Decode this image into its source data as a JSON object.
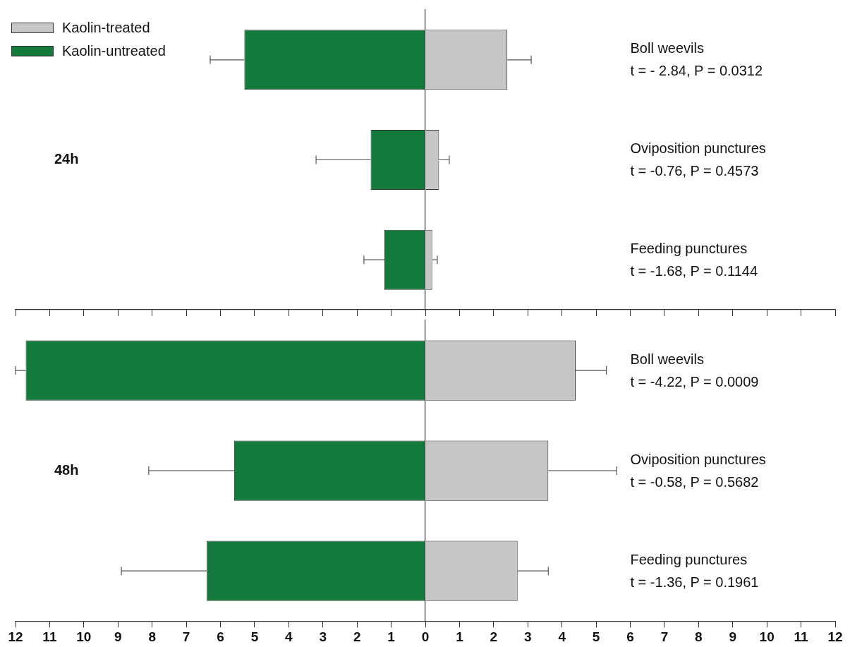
{
  "chart_data": [
    {
      "type": "bar",
      "orientation": "horizontal",
      "stacked": true,
      "categories": [
        "Boll weevils",
        "Oviposition punctures",
        "Feeding punctures"
      ],
      "series": [
        {
          "name": "Kaolin-treated",
          "color": "#c6c6c6",
          "values": [
            2.4,
            0.4,
            0.2
          ],
          "errors": [
            0.7,
            0.3,
            0.15
          ]
        },
        {
          "name": "Kaolin-untreated",
          "color": "#137a3c",
          "values": [
            -5.3,
            -1.6,
            -1.2
          ],
          "errors": [
            1.0,
            1.6,
            0.6
          ]
        }
      ],
      "xlim": [
        -12,
        12
      ],
      "xticks": [
        {
          "value": -12,
          "label": null
        },
        {
          "value": -11,
          "label": null
        },
        {
          "value": -10,
          "label": null
        },
        {
          "value": -9,
          "label": null
        },
        {
          "value": -8,
          "label": null
        },
        {
          "value": -7,
          "label": null
        },
        {
          "value": -6,
          "label": null
        },
        {
          "value": -5,
          "label": null
        },
        {
          "value": -4,
          "label": null
        },
        {
          "value": -3,
          "label": null
        },
        {
          "value": -2,
          "label": null
        },
        {
          "value": -1,
          "label": null
        },
        {
          "value": 0,
          "label": null
        },
        {
          "value": 1,
          "label": null
        },
        {
          "value": 2,
          "label": null
        },
        {
          "value": 3,
          "label": null
        },
        {
          "value": 4,
          "label": null
        },
        {
          "value": 5,
          "label": null
        },
        {
          "value": 6,
          "label": null
        },
        {
          "value": 7,
          "label": null
        },
        {
          "value": 8,
          "label": null
        },
        {
          "value": 9,
          "label": null
        },
        {
          "value": 10,
          "label": null
        },
        {
          "value": 11,
          "label": null
        },
        {
          "value": 12,
          "label": null
        }
      ],
      "tick_labels": "y",
      "legend": "top left",
      "annotations": [
        "24h",
        "t = - 2.84, P = 0.0312",
        "t = -0.76, P = 0.4573",
        "t = -1.68, P = 0.1144"
      ]
    },
    {
      "type": "bar",
      "orientation": "horizontal",
      "stacked": true,
      "categories": [
        "Boll weevils",
        "Oviposition punctures",
        "Feeding punctures"
      ],
      "series": [
        {
          "color": "#c6c6c6",
          "values": [
            4.4,
            3.6,
            2.7
          ],
          "errors": [
            0.9,
            2.0,
            0.9
          ]
        },
        {
          "color": "#137a3c",
          "values": [
            -11.7,
            -5.6,
            -6.4
          ],
          "errors": [
            0.3,
            2.5,
            2.5
          ]
        }
      ],
      "xlim": [
        -12,
        12
      ],
      "xticks": [
        {
          "value": -12,
          "label": "12"
        },
        {
          "value": -11,
          "label": "11"
        },
        {
          "value": -10,
          "label": "10"
        },
        {
          "value": -9,
          "label": "9"
        },
        {
          "value": -8,
          "label": "8"
        },
        {
          "value": -7,
          "label": "7"
        },
        {
          "value": -6,
          "label": "6"
        },
        {
          "value": -5,
          "label": "5"
        },
        {
          "value": -4,
          "label": "4"
        },
        {
          "value": -3,
          "label": "3"
        },
        {
          "value": -2,
          "label": "2"
        },
        {
          "value": -1,
          "label": "1"
        },
        0,
        1,
        2,
        3,
        4,
        5,
        6,
        7,
        8,
        9,
        10,
        11,
        12
      ],
      "annotations": [
        "48h",
        "t = -4.22, P = 0.0009",
        "t = -0.58, P = 0.5682",
        "t = -1.36, P = 0.1961"
      ]
    }
  ]
}
